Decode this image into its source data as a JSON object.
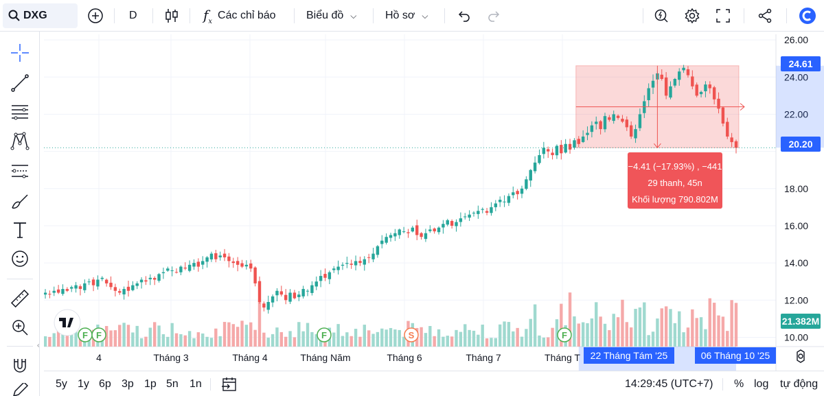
{
  "toolbar": {
    "symbol": "DXG",
    "interval": "D",
    "indicators_label": "Các chỉ báo",
    "chart_label": "Biểu đồ",
    "profile_label": "Hồ sơ"
  },
  "price_axis": {
    "ticks": [
      "26.00",
      "24.00",
      "22.00",
      "18.00",
      "16.00",
      "14.00",
      "12.00",
      "10.00"
    ],
    "tag_high": "24.61",
    "tag_last": "20.20",
    "tag_volume": "21.382M"
  },
  "time_axis": {
    "labels": [
      "4",
      "Tháng 3",
      "Tháng 4",
      "Tháng Năm",
      "Tháng 6",
      "Tháng 7",
      "Tháng T"
    ],
    "range_start": "22 Tháng Tám '25",
    "range_end": "06 Tháng 10 '25"
  },
  "measure": {
    "line1": "−4.41 (−17.93%) , −441",
    "line2": "29 thanh, 45n",
    "line3": "Khối lượng 790.802M"
  },
  "events": [
    {
      "letter": "F",
      "kind": "dividend"
    },
    {
      "letter": "F",
      "kind": "dividend"
    },
    {
      "letter": "S",
      "kind": "split"
    },
    {
      "letter": "F",
      "kind": "dividend"
    }
  ],
  "bottom": {
    "ranges": [
      "5y",
      "1y",
      "6p",
      "3p",
      "1p",
      "5n",
      "1n"
    ],
    "clock": "14:29:45 (UTC+7)",
    "percent": "%",
    "log": "log",
    "auto": "tự động"
  },
  "colors": {
    "up": "#26a69a",
    "down": "#ef5350",
    "up_volume": "#9fd9cf",
    "down_volume": "#f5a9a9",
    "accent": "#2962ff",
    "measure_fill": "#f05559"
  },
  "chart_data": {
    "type": "candlestick",
    "price_ylim": [
      9.5,
      26.3
    ],
    "months": [
      "4",
      "Tháng 3",
      "Tháng 4",
      "Tháng Năm",
      "Tháng 6",
      "Tháng 7",
      "Tháng T"
    ],
    "closes": [
      12.4,
      12.3,
      12.5,
      12.4,
      12.6,
      12.5,
      12.7,
      12.8,
      12.6,
      12.9,
      13.0,
      12.8,
      13.1,
      13.2,
      12.9,
      12.7,
      12.5,
      12.4,
      12.6,
      12.5,
      12.8,
      12.9,
      13.1,
      13.0,
      13.2,
      13.1,
      13.4,
      13.5,
      13.7,
      13.6,
      13.5,
      13.8,
      13.7,
      13.9,
      14.0,
      13.8,
      14.1,
      14.3,
      14.5,
      14.2,
      14.4,
      14.3,
      14.1,
      14.0,
      13.9,
      13.8,
      13.9,
      13.7,
      12.9,
      11.9,
      11.6,
      11.9,
      12.2,
      12.5,
      12.3,
      12.0,
      12.4,
      12.1,
      12.3,
      12.6,
      12.5,
      12.8,
      13.0,
      13.3,
      13.2,
      13.5,
      13.7,
      13.8,
      13.9,
      14.0,
      13.9,
      14.1,
      14.0,
      14.2,
      14.3,
      14.5,
      14.9,
      15.2,
      15.4,
      15.5,
      15.6,
      15.8,
      15.7,
      15.6,
      15.9,
      15.5,
      15.4,
      15.6,
      15.8,
      15.7,
      15.9,
      16.1,
      16.3,
      16.0,
      16.2,
      16.4,
      16.5,
      16.6,
      16.7,
      16.8,
      16.9,
      16.7,
      17.0,
      17.2,
      17.4,
      17.3,
      17.6,
      17.8,
      17.7,
      18.0,
      18.5,
      19.0,
      19.4,
      19.8,
      20.2,
      20.0,
      19.8,
      20.3,
      19.9,
      20.4,
      20.1,
      20.6,
      20.4,
      20.8,
      21.0,
      21.4,
      21.6,
      21.2,
      21.9,
      21.7,
      22.0,
      21.8,
      21.6,
      21.3,
      20.8,
      21.2,
      22.0,
      22.7,
      23.4,
      23.8,
      24.2,
      23.9,
      23.0,
      23.5,
      23.9,
      24.3,
      24.5,
      24.1,
      23.5,
      23.0,
      23.2,
      23.6,
      23.4,
      22.8,
      22.3,
      21.5,
      20.8,
      20.5,
      20.2
    ],
    "volume_ylim": [
      0,
      10
    ]
  }
}
